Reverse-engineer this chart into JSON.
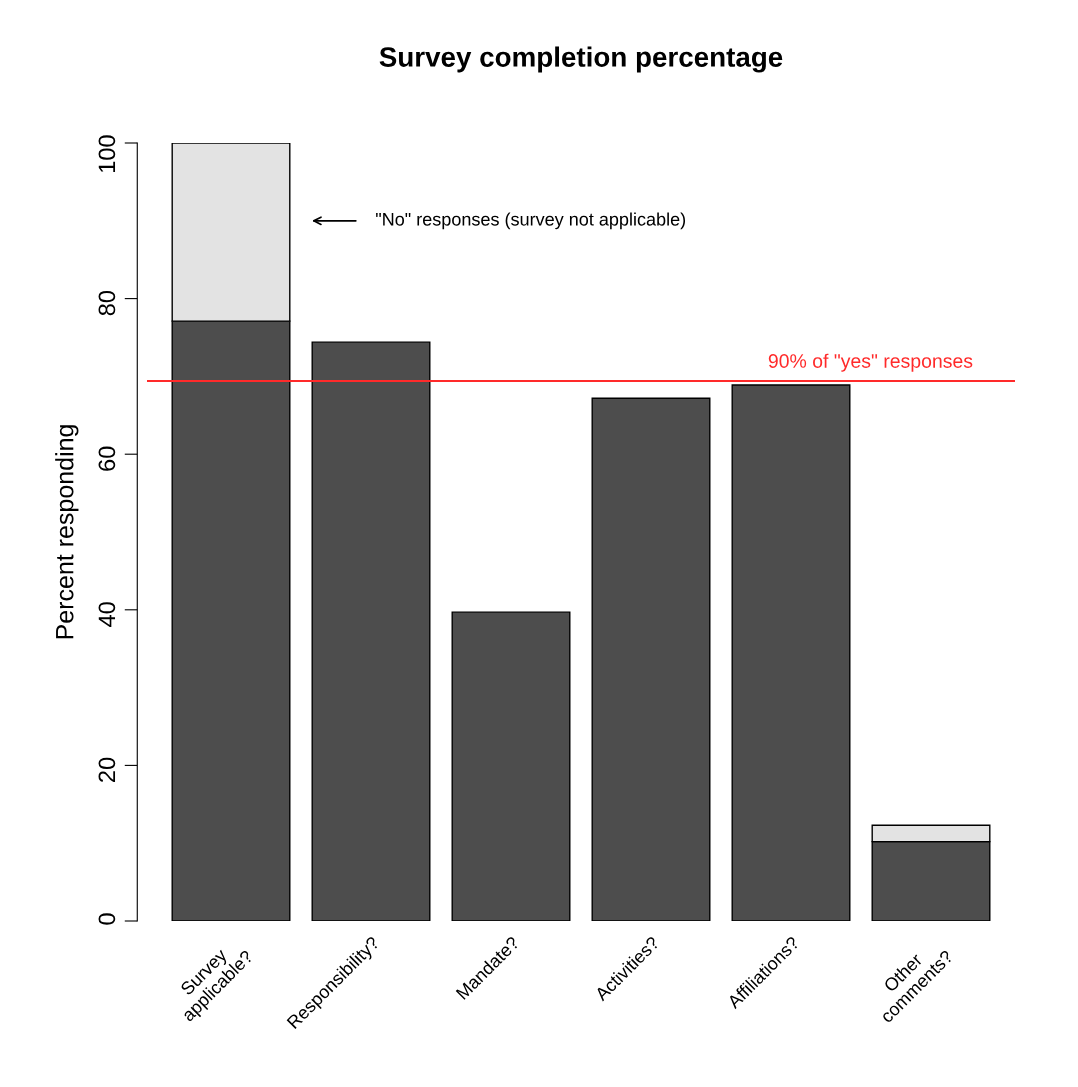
{
  "chart_data": {
    "type": "bar",
    "title": "Survey completion percentage",
    "ylabel": "Percent responding",
    "categories": [
      "Survey\napplicable?",
      "Responsibility?",
      "Mandate?",
      "Activities?",
      "Affiliations?",
      "Other\ncomments?"
    ],
    "stacked": true,
    "series": [
      {
        "color": "#4d4d4d",
        "values": [
          77.1,
          74.4,
          39.7,
          67.2,
          68.9,
          10.2
        ]
      },
      {
        "color": "#e3e3e3",
        "values": [
          22.9,
          null,
          null,
          null,
          null,
          2.1
        ]
      }
    ],
    "ylim": [
      0,
      100
    ],
    "yticks": [
      0,
      20,
      40,
      60,
      80,
      100
    ],
    "ref_lines": [
      {
        "axis": "y",
        "value": 69.4,
        "label": "90% of \"yes\" responses",
        "color": "#ff2a2a"
      }
    ],
    "annotations": [
      "\"No\" responses (survey not applicable)"
    ],
    "grid": false,
    "legend": false
  }
}
